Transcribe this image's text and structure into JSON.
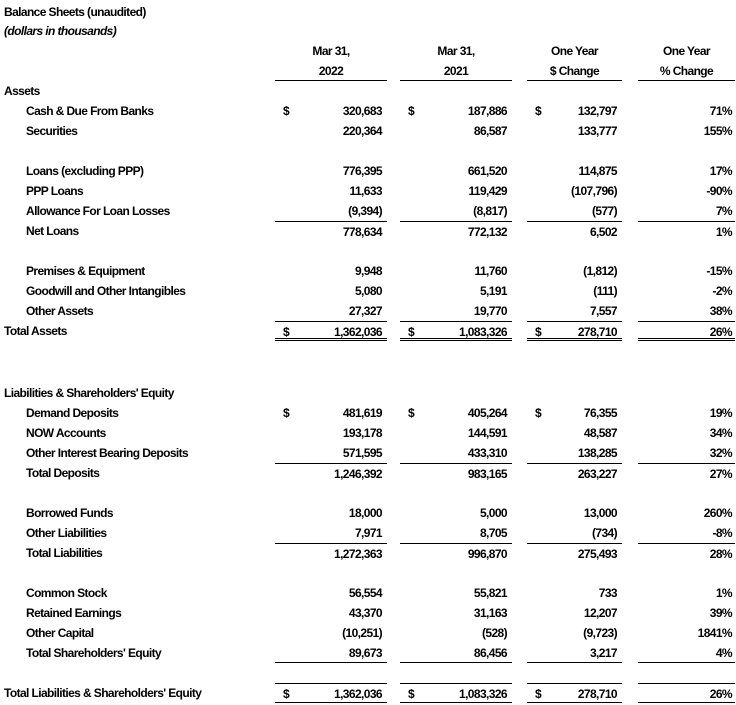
{
  "title": "Balance Sheets (unaudited)",
  "subtitle": "(dollars in thousands)",
  "columns": [
    {
      "line1": "Mar 31,",
      "line2": "2022"
    },
    {
      "line1": "Mar 31,",
      "line2": "2021"
    },
    {
      "line1": "One Year",
      "line2": "$ Change"
    },
    {
      "line1": "One Year",
      "line2": "% Change"
    }
  ],
  "currency_symbol": "$",
  "rows": [
    {
      "label": "Assets",
      "kind": "section"
    },
    {
      "label": "Cash & Due From Banks",
      "dollar": true,
      "values": [
        "320,683",
        "187,886",
        "132,797",
        "71%"
      ]
    },
    {
      "label": "Securities",
      "values": [
        "220,364",
        "86,587",
        "133,777",
        "155%"
      ]
    },
    {
      "kind": "blank"
    },
    {
      "label": "Loans (excluding PPP)",
      "values": [
        "776,395",
        "661,520",
        "114,875",
        "17%"
      ]
    },
    {
      "label": "PPP Loans",
      "values": [
        "11,633",
        "119,429",
        "(107,796)",
        "-90%"
      ]
    },
    {
      "label": "Allowance For Loan Losses",
      "values": [
        "(9,394)",
        "(8,817)",
        "(577)",
        "7%"
      ]
    },
    {
      "label": "Net Loans",
      "kind": "subtotal",
      "values": [
        "778,634",
        "772,132",
        "6,502",
        "1%"
      ]
    },
    {
      "kind": "blank"
    },
    {
      "label": "Premises & Equipment",
      "values": [
        "9,948",
        "11,760",
        "(1,812)",
        "-15%"
      ]
    },
    {
      "label": "Goodwill and Other Intangibles",
      "values": [
        "5,080",
        "5,191",
        "(111)",
        "-2%"
      ]
    },
    {
      "label": "Other Assets",
      "values": [
        "27,327",
        "19,770",
        "7,557",
        "38%"
      ]
    },
    {
      "label": "Total Assets",
      "kind": "grand",
      "dollar": true,
      "values": [
        "1,362,036",
        "1,083,326",
        "278,710",
        "26%"
      ]
    },
    {
      "kind": "blank"
    },
    {
      "kind": "blank"
    },
    {
      "kind": "blank"
    },
    {
      "label": "Liabilities & Shareholders' Equity",
      "kind": "section"
    },
    {
      "label": "Demand Deposits",
      "dollar": true,
      "values": [
        "481,619",
        "405,264",
        "76,355",
        "19%"
      ]
    },
    {
      "label": "NOW Accounts",
      "values": [
        "193,178",
        "144,591",
        "48,587",
        "34%"
      ]
    },
    {
      "label": "Other Interest Bearing Deposits",
      "values": [
        "571,595",
        "433,310",
        "138,285",
        "32%"
      ]
    },
    {
      "label": "Total Deposits",
      "kind": "subtotal",
      "values": [
        "1,246,392",
        "983,165",
        "263,227",
        "27%"
      ]
    },
    {
      "kind": "blank"
    },
    {
      "label": "Borrowed Funds",
      "values": [
        "18,000",
        "5,000",
        "13,000",
        "260%"
      ]
    },
    {
      "label": "Other Liabilities",
      "values": [
        "7,971",
        "8,705",
        "(734)",
        "-8%"
      ]
    },
    {
      "label": "Total Liabilities",
      "kind": "subtotal",
      "values": [
        "1,272,363",
        "996,870",
        "275,493",
        "28%"
      ]
    },
    {
      "kind": "blank"
    },
    {
      "label": "Common Stock",
      "values": [
        "56,554",
        "55,821",
        "733",
        "1%"
      ]
    },
    {
      "label": "Retained Earnings",
      "values": [
        "43,370",
        "31,163",
        "12,207",
        "39%"
      ]
    },
    {
      "label": "Other Capital",
      "values": [
        "(10,251)",
        "(528)",
        "(9,723)",
        "1841%"
      ]
    },
    {
      "label": "Total Shareholders' Equity",
      "kind": "subtotal-under",
      "values": [
        "89,673",
        "86,456",
        "3,217",
        "4%"
      ]
    },
    {
      "kind": "blank"
    },
    {
      "label": "Total Liabilities & Shareholders' Equity",
      "kind": "final",
      "dollar": true,
      "values": [
        "1,362,036",
        "1,083,326",
        "278,710",
        "26%"
      ]
    }
  ]
}
